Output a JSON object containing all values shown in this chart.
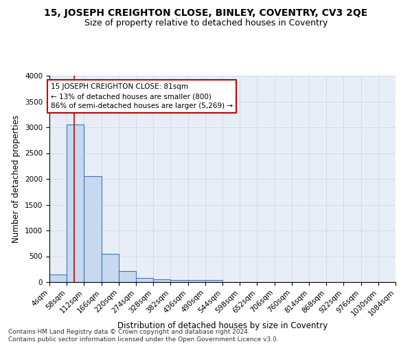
{
  "title1": "15, JOSEPH CREIGHTON CLOSE, BINLEY, COVENTRY, CV3 2QE",
  "title2": "Size of property relative to detached houses in Coventry",
  "xlabel": "Distribution of detached houses by size in Coventry",
  "ylabel": "Number of detached properties",
  "bin_edges": [
    4,
    58,
    112,
    166,
    220,
    274,
    328,
    382,
    436,
    490,
    544,
    598,
    652,
    706,
    760,
    814,
    868,
    922,
    976,
    1030,
    1084
  ],
  "bar_heights": [
    150,
    3050,
    2060,
    550,
    210,
    75,
    55,
    45,
    45,
    45,
    0,
    0,
    0,
    0,
    0,
    0,
    0,
    0,
    0,
    0
  ],
  "bar_color": "#c6d9f0",
  "bar_edge_color": "#4472c4",
  "bar_edge_width": 0.8,
  "red_line_x": 81,
  "red_line_color": "#cc0000",
  "annotation_text": "15 JOSEPH CREIGHTON CLOSE: 81sqm\n← 13% of detached houses are smaller (800)\n86% of semi-detached houses are larger (5,269) →",
  "annotation_box_color": "#ffffff",
  "annotation_box_edge": "#cc0000",
  "ylim": [
    0,
    4000
  ],
  "yticks": [
    0,
    500,
    1000,
    1500,
    2000,
    2500,
    3000,
    3500,
    4000
  ],
  "xtick_labels": [
    "4sqm",
    "58sqm",
    "112sqm",
    "166sqm",
    "220sqm",
    "274sqm",
    "328sqm",
    "382sqm",
    "436sqm",
    "490sqm",
    "544sqm",
    "598sqm",
    "652sqm",
    "706sqm",
    "760sqm",
    "814sqm",
    "868sqm",
    "922sqm",
    "976sqm",
    "1030sqm",
    "1084sqm"
  ],
  "grid_color": "#d0d8e8",
  "bg_color": "#e8eef8",
  "footer": "Contains HM Land Registry data © Crown copyright and database right 2024.\nContains public sector information licensed under the Open Government Licence v3.0.",
  "title1_fontsize": 10,
  "title2_fontsize": 9,
  "xlabel_fontsize": 8.5,
  "ylabel_fontsize": 8.5,
  "tick_fontsize": 7.5,
  "annotation_fontsize": 7.5,
  "footer_fontsize": 6.5
}
